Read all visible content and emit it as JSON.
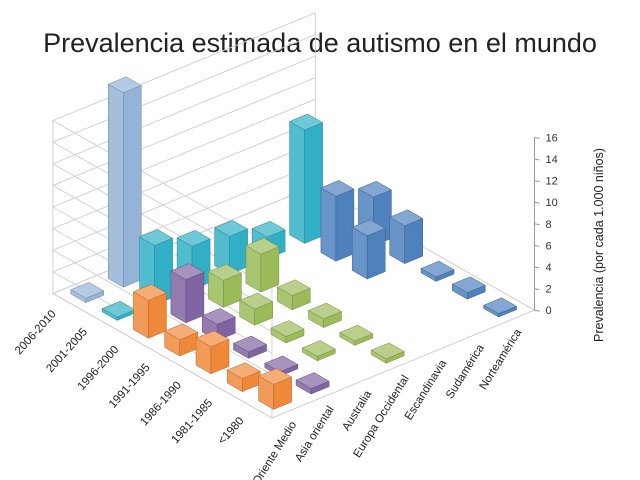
{
  "chart_data": {
    "type": "bar",
    "subtype": "3d-column",
    "title": "Prevalencia estimada de autismo en el mundo",
    "zlabel": "Prevalencia (por cada 1.000 niños)",
    "zlim": [
      0,
      16
    ],
    "z_ticks": [
      "0",
      "2",
      "4",
      "6",
      "8",
      "10",
      "12",
      "14",
      "16"
    ],
    "grid": true,
    "legend": "none",
    "regions": [
      "Oriente Medio",
      "Asia oriental",
      "Australia",
      "Europa Occidental",
      "Escandinavia",
      "Sudamérica",
      "Norteamérica"
    ],
    "periods": [
      "<1980",
      "1981-1985",
      "1986-1990",
      "1991-1995",
      "1996-2000",
      "2001-2005",
      "2006-2010"
    ],
    "colors": {
      "Oriente Medio": "#f0883a",
      "Asia oriental": "#8064a2",
      "Australia": "#9bbb59",
      "Europa Occidental": "#9bbb59",
      "Escandinavia": "#c0504d",
      "Sudamérica": "#4f81bd",
      "Norteamérica": "#4f81bd"
    },
    "series": [
      {
        "name": "2006-2010",
        "values": [
          0.4,
          18.0,
          null,
          null,
          null,
          null,
          null
        ]
      },
      {
        "name": "2001-2005",
        "values": [
          0.3,
          5.5,
          4.0,
          3.5,
          2.0,
          10.5,
          null
        ]
      },
      {
        "name": "1996-2000",
        "values": [
          3.5,
          4.0,
          2.5,
          3.5,
          null,
          6.0,
          4.5
        ]
      },
      {
        "name": "1991-1995",
        "values": [
          1.5,
          1.5,
          1.5,
          1.3,
          null,
          4.0,
          3.5
        ]
      },
      {
        "name": "1986-1990",
        "values": [
          2.5,
          0.6,
          0.6,
          0.8,
          null,
          null,
          0.4
        ]
      },
      {
        "name": "1981-1985",
        "values": [
          1.2,
          0.4,
          0.4,
          0.4,
          null,
          null,
          0.6
        ]
      },
      {
        "name": "<1980",
        "values": [
          2.3,
          0.5,
          null,
          0.4,
          null,
          null,
          0.3
        ]
      }
    ]
  }
}
